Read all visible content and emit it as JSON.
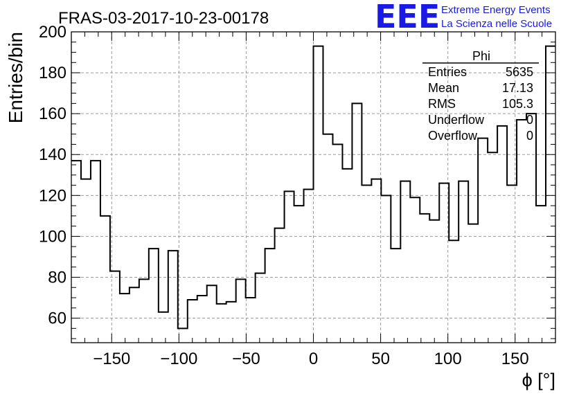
{
  "chart_data": {
    "type": "bar",
    "title": "FRAS-03-2017-10-23-00178",
    "xlabel": "ϕ [°]",
    "ylabel": "Entries/bin",
    "xlim": [
      -180,
      180
    ],
    "ylim": [
      48,
      200
    ],
    "bin_width": 7.2,
    "grid": true,
    "x_ticks": [
      "−150",
      "−100",
      "−50",
      "0",
      "50",
      "100",
      "150"
    ],
    "x_tick_values": [
      -150,
      -100,
      -50,
      0,
      50,
      100,
      150
    ],
    "y_ticks": [
      "60",
      "80",
      "100",
      "120",
      "140",
      "160",
      "180",
      "200"
    ],
    "y_tick_values": [
      60,
      80,
      100,
      120,
      140,
      160,
      180,
      200
    ],
    "values": [
      137,
      128,
      137,
      110,
      83,
      72,
      75,
      79,
      94,
      63,
      93,
      55,
      69,
      71,
      76,
      67,
      68,
      79,
      70,
      82,
      94,
      104,
      122,
      115,
      123,
      193,
      150,
      145,
      133,
      165,
      125,
      128,
      120,
      94,
      127,
      119,
      111,
      108,
      126,
      98,
      127,
      106,
      148,
      141,
      154,
      125,
      157,
      160,
      115,
      193
    ],
    "color": "#000000"
  },
  "stats_box": {
    "title": "Phi",
    "rows": [
      {
        "label": "Entries",
        "value": "5635"
      },
      {
        "label": "Mean",
        "value": "17.13"
      },
      {
        "label": "RMS",
        "value": "105.3"
      },
      {
        "label": "Underflow",
        "value": "0"
      },
      {
        "label": "Overflow",
        "value": "0"
      }
    ]
  },
  "logo": {
    "mark": "EEE",
    "line1": "Extreme Energy Events",
    "line2": "La Scienza nelle Scuole",
    "color": "#1a1ae6"
  }
}
